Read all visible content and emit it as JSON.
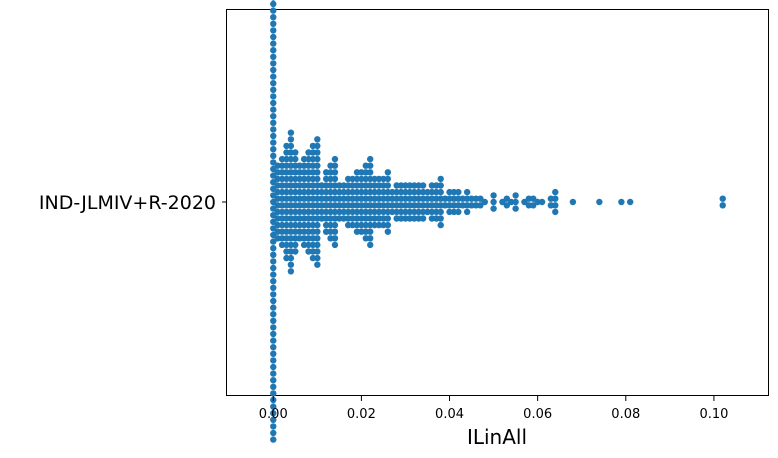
{
  "chart_data": {
    "type": "scatter",
    "subtype": "swarm",
    "xlabel": "ILinAll",
    "ylabel": "",
    "categories": [
      "IND-JLMIV+R-2020"
    ],
    "xlim": [
      -0.0105,
      0.1125
    ],
    "x_ticks": [
      {
        "value": 0.0,
        "label": "0.00"
      },
      {
        "value": 0.02,
        "label": "0.02"
      },
      {
        "value": 0.04,
        "label": "0.04"
      },
      {
        "value": 0.06,
        "label": "0.06"
      },
      {
        "value": 0.08,
        "label": "0.08"
      },
      {
        "value": 0.1,
        "label": "0.10"
      }
    ],
    "grid": false,
    "marker_color": "#1f77b4",
    "series": [
      {
        "category": "IND-JLMIV+R-2020",
        "values": [
          0,
          0,
          0,
          0,
          0,
          0,
          0,
          0,
          0,
          0,
          0,
          0,
          0,
          0,
          0,
          0,
          0,
          0,
          0,
          0,
          0,
          0,
          0,
          0,
          0,
          0,
          0,
          0,
          0,
          0,
          0,
          0,
          0,
          0,
          0,
          0,
          0,
          0,
          0,
          0,
          0,
          0,
          0,
          0,
          0,
          0,
          0,
          0,
          0,
          0,
          0,
          0,
          0,
          0,
          0,
          0,
          0,
          0,
          0,
          0,
          0,
          0,
          0,
          0,
          0,
          0,
          0,
          0,
          0,
          0,
          0,
          0,
          0,
          0.001,
          0.001,
          0.001,
          0.001,
          0.001,
          0.001,
          0.001,
          0.001,
          0.001,
          0.001,
          0.001,
          0.001,
          0.002,
          0.002,
          0.002,
          0.002,
          0.002,
          0.002,
          0.002,
          0.002,
          0.002,
          0.002,
          0.002,
          0.002,
          0.002,
          0.002,
          0.003,
          0.003,
          0.003,
          0.003,
          0.003,
          0.003,
          0.003,
          0.003,
          0.003,
          0.003,
          0.003,
          0.003,
          0.003,
          0.003,
          0.003,
          0.003,
          0.003,
          0.003,
          0.004,
          0.004,
          0.004,
          0.004,
          0.004,
          0.004,
          0.004,
          0.004,
          0.004,
          0.004,
          0.004,
          0.004,
          0.004,
          0.004,
          0.004,
          0.004,
          0.004,
          0.004,
          0.004,
          0.004,
          0.004,
          0.004,
          0.005,
          0.005,
          0.005,
          0.005,
          0.005,
          0.005,
          0.005,
          0.005,
          0.005,
          0.005,
          0.005,
          0.005,
          0.005,
          0.005,
          0.005,
          0.005,
          0.006,
          0.006,
          0.006,
          0.006,
          0.006,
          0.006,
          0.006,
          0.006,
          0.006,
          0.006,
          0.006,
          0.006,
          0.007,
          0.007,
          0.007,
          0.007,
          0.007,
          0.007,
          0.007,
          0.007,
          0.007,
          0.007,
          0.007,
          0.007,
          0.007,
          0.007,
          0.008,
          0.008,
          0.008,
          0.008,
          0.008,
          0.008,
          0.008,
          0.008,
          0.008,
          0.008,
          0.008,
          0.008,
          0.008,
          0.008,
          0.008,
          0.008,
          0.009,
          0.009,
          0.009,
          0.009,
          0.009,
          0.009,
          0.009,
          0.009,
          0.009,
          0.009,
          0.009,
          0.009,
          0.009,
          0.009,
          0.009,
          0.009,
          0.009,
          0.009,
          0.01,
          0.01,
          0.01,
          0.01,
          0.01,
          0.01,
          0.01,
          0.01,
          0.01,
          0.01,
          0.01,
          0.01,
          0.01,
          0.01,
          0.01,
          0.01,
          0.01,
          0.01,
          0.01,
          0.01,
          0.011,
          0.011,
          0.011,
          0.011,
          0.011,
          0.011,
          0.012,
          0.012,
          0.012,
          0.012,
          0.012,
          0.012,
          0.012,
          0.012,
          0.012,
          0.012,
          0.013,
          0.013,
          0.013,
          0.013,
          0.013,
          0.013,
          0.013,
          0.013,
          0.013,
          0.013,
          0.013,
          0.013,
          0.014,
          0.014,
          0.014,
          0.014,
          0.014,
          0.014,
          0.014,
          0.014,
          0.014,
          0.014,
          0.014,
          0.014,
          0.014,
          0.014,
          0.015,
          0.015,
          0.015,
          0.015,
          0.015,
          0.015,
          0.016,
          0.016,
          0.016,
          0.016,
          0.016,
          0.016,
          0.017,
          0.017,
          0.017,
          0.017,
          0.017,
          0.017,
          0.017,
          0.017,
          0.018,
          0.018,
          0.018,
          0.018,
          0.018,
          0.018,
          0.018,
          0.018,
          0.019,
          0.019,
          0.019,
          0.019,
          0.019,
          0.019,
          0.019,
          0.019,
          0.019,
          0.019,
          0.02,
          0.02,
          0.02,
          0.02,
          0.02,
          0.02,
          0.02,
          0.02,
          0.02,
          0.02,
          0.021,
          0.021,
          0.021,
          0.021,
          0.021,
          0.021,
          0.021,
          0.021,
          0.021,
          0.021,
          0.021,
          0.021,
          0.022,
          0.022,
          0.022,
          0.022,
          0.022,
          0.022,
          0.022,
          0.022,
          0.022,
          0.022,
          0.022,
          0.022,
          0.022,
          0.022,
          0.023,
          0.023,
          0.023,
          0.023,
          0.023,
          0.023,
          0.023,
          0.023,
          0.024,
          0.024,
          0.024,
          0.024,
          0.024,
          0.024,
          0.024,
          0.024,
          0.025,
          0.025,
          0.025,
          0.025,
          0.025,
          0.025,
          0.025,
          0.025,
          0.026,
          0.026,
          0.026,
          0.026,
          0.026,
          0.026,
          0.026,
          0.026,
          0.026,
          0.026,
          0.027,
          0.027,
          0.027,
          0.027,
          0.028,
          0.028,
          0.028,
          0.028,
          0.028,
          0.028,
          0.029,
          0.029,
          0.029,
          0.029,
          0.029,
          0.029,
          0.03,
          0.03,
          0.03,
          0.03,
          0.03,
          0.03,
          0.031,
          0.031,
          0.031,
          0.031,
          0.031,
          0.031,
          0.032,
          0.032,
          0.032,
          0.032,
          0.032,
          0.032,
          0.033,
          0.033,
          0.033,
          0.033,
          0.033,
          0.033,
          0.034,
          0.034,
          0.034,
          0.034,
          0.034,
          0.034,
          0.035,
          0.035,
          0.035,
          0.035,
          0.036,
          0.036,
          0.036,
          0.036,
          0.036,
          0.036,
          0.037,
          0.037,
          0.037,
          0.037,
          0.037,
          0.037,
          0.038,
          0.038,
          0.038,
          0.038,
          0.038,
          0.038,
          0.038,
          0.038,
          0.039,
          0.039,
          0.04,
          0.04,
          0.04,
          0.04,
          0.041,
          0.041,
          0.041,
          0.041,
          0.042,
          0.042,
          0.042,
          0.042,
          0.043,
          0.043,
          0.044,
          0.044,
          0.044,
          0.044,
          0.045,
          0.045,
          0.046,
          0.046,
          0.047,
          0.047,
          0.048,
          0.05,
          0.05,
          0.05,
          0.052,
          0.053,
          0.053,
          0.054,
          0.055,
          0.055,
          0.055,
          0.057,
          0.058,
          0.058,
          0.059,
          0.059,
          0.06,
          0.061,
          0.063,
          0.063,
          0.064,
          0.064,
          0.064,
          0.064,
          0.068,
          0.074,
          0.079,
          0.081,
          0.102,
          0.102
        ]
      }
    ]
  }
}
